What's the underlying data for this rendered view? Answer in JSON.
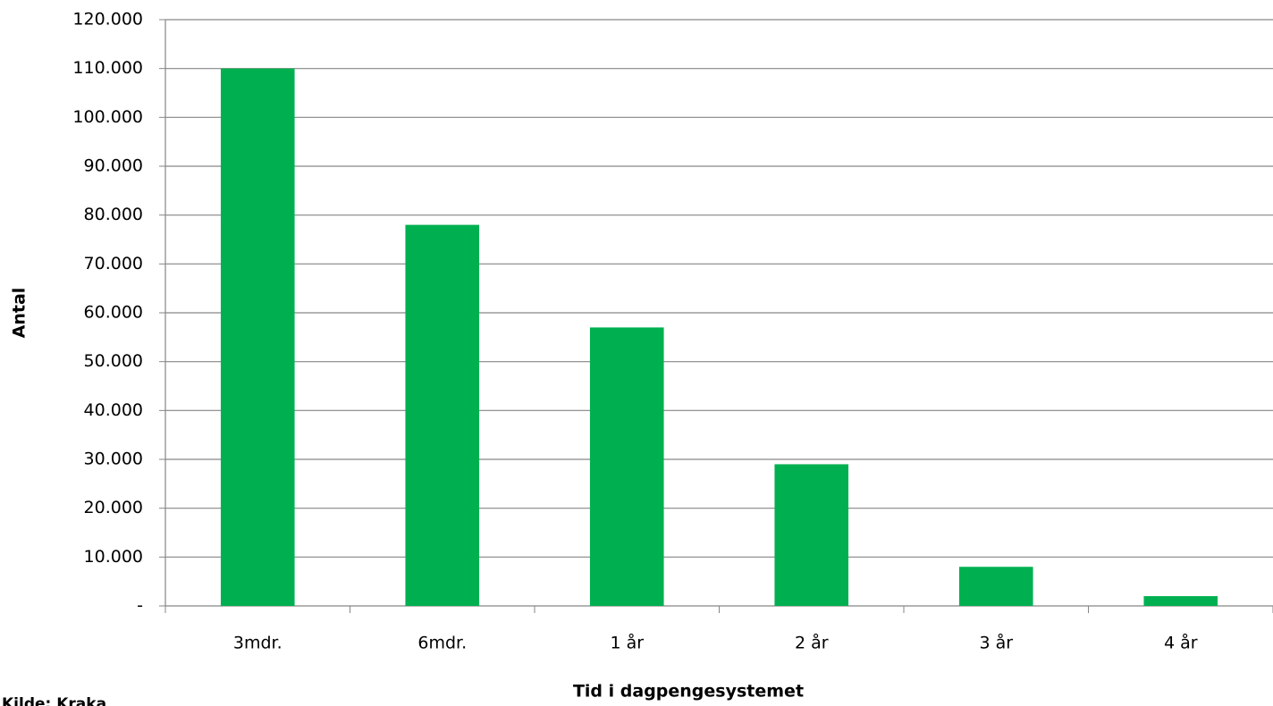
{
  "chart_data": {
    "type": "bar",
    "x_label": "Tid i dagpengesystemet",
    "y_label": "Antal",
    "source": "Kilde: Kraka",
    "categories": [
      "3mdr.",
      "6mdr.",
      "1 år",
      "2 år",
      "3 år",
      "4 år"
    ],
    "values": [
      110000,
      78000,
      57000,
      29000,
      8000,
      2000
    ],
    "color": "#00b050",
    "ylim": [
      0,
      120000
    ],
    "yticks": [
      {
        "value": 0,
        "label": "-"
      },
      {
        "value": 10000,
        "label": "10.000"
      },
      {
        "value": 20000,
        "label": "20.000"
      },
      {
        "value": 30000,
        "label": "30.000"
      },
      {
        "value": 40000,
        "label": "40.000"
      },
      {
        "value": 50000,
        "label": "50.000"
      },
      {
        "value": 60000,
        "label": "60.000"
      },
      {
        "value": 70000,
        "label": "70.000"
      },
      {
        "value": 80000,
        "label": "80.000"
      },
      {
        "value": 90000,
        "label": "90.000"
      },
      {
        "value": 100000,
        "label": "100.000"
      },
      {
        "value": 110000,
        "label": "110.000"
      },
      {
        "value": 120000,
        "label": "120.000"
      }
    ],
    "grid": true
  }
}
